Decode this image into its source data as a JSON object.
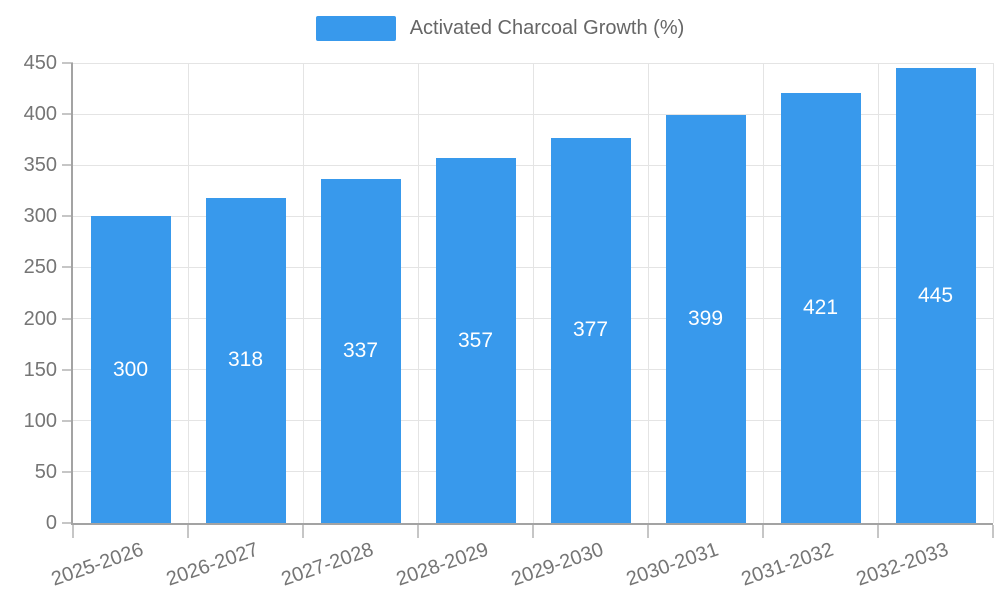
{
  "legend": {
    "label": "Activated Charcoal Growth (%)"
  },
  "colors": {
    "bar": "#3899ec",
    "bar_label": "#ffffff",
    "grid": "#e4e4e4",
    "axis": "#a3a3a3",
    "tick": "#c6c6c6",
    "tick_label": "#757575",
    "legend_text": "#666666",
    "background": "#ffffff"
  },
  "chart_data": {
    "type": "bar",
    "title": "",
    "categories": [
      "2025-2026",
      "2026-2027",
      "2027-2028",
      "2028-2029",
      "2029-2030",
      "2030-2031",
      "2031-2032",
      "2032-2033"
    ],
    "series": [
      {
        "name": "Activated Charcoal Growth (%)",
        "values": [
          300,
          318,
          337,
          357,
          377,
          399,
          421,
          445
        ]
      }
    ],
    "values": [
      300,
      318,
      337,
      357,
      377,
      399,
      421,
      445
    ],
    "bar_value_labels": [
      "300",
      "318",
      "337",
      "357",
      "377",
      "399",
      "421",
      "445"
    ],
    "xlabel": "",
    "ylabel": "",
    "ylim": [
      0,
      450
    ],
    "yticks": [
      0,
      50,
      100,
      150,
      200,
      250,
      300,
      350,
      400,
      450
    ],
    "grid": true,
    "legend_position": "top-center",
    "x_label_rotation_deg": -19,
    "value_labels_inside_bars": true
  }
}
